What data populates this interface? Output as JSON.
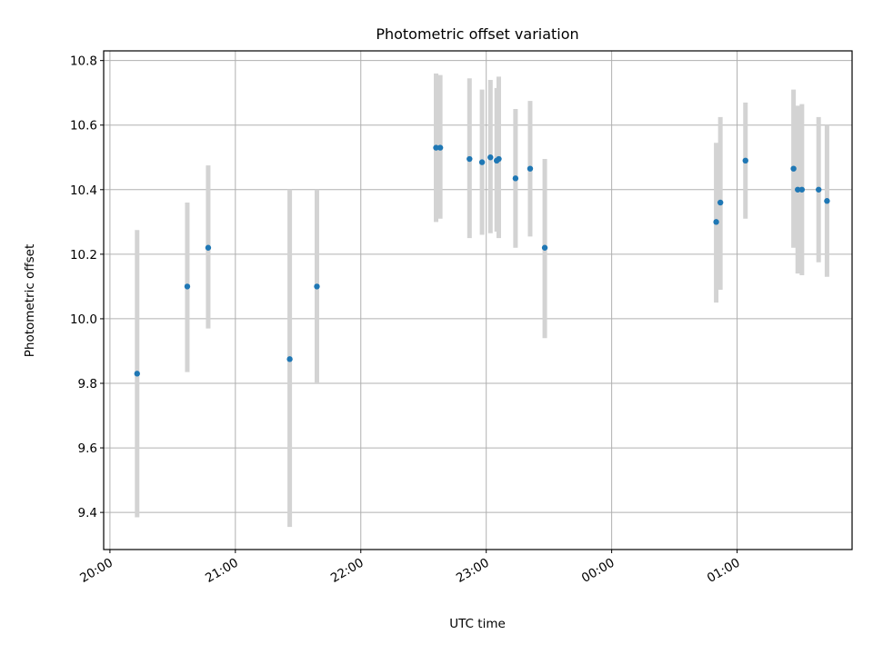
{
  "chart_data": {
    "type": "scatter",
    "title": "Photometric offset variation",
    "xlabel": "UTC time",
    "ylabel": "Photometric offset",
    "x_tick_labels": [
      "20:00",
      "21:00",
      "22:00",
      "23:00",
      "00:00",
      "01:00"
    ],
    "y_tick_labels": [
      "9.4",
      "9.6",
      "9.8",
      "10.0",
      "10.2",
      "10.4",
      "10.6",
      "10.8"
    ],
    "xlim": [
      "19:57",
      "01:55"
    ],
    "ylim": [
      9.285,
      10.83
    ],
    "grid": true,
    "series": [
      {
        "marker_color": "#1f77b4",
        "errorbar_color": "#d3d3d3",
        "points": [
          {
            "x": "20:13",
            "y": 9.83,
            "y_low": 9.385,
            "y_high": 10.275
          },
          {
            "x": "20:37",
            "y": 10.1,
            "y_low": 9.835,
            "y_high": 10.36
          },
          {
            "x": "20:47",
            "y": 10.22,
            "y_low": 9.97,
            "y_high": 10.475
          },
          {
            "x": "21:26",
            "y": 9.875,
            "y_low": 9.355,
            "y_high": 10.4
          },
          {
            "x": "21:39",
            "y": 10.1,
            "y_low": 9.8,
            "y_high": 10.4
          },
          {
            "x": "22:36",
            "y": 10.53,
            "y_low": 10.3,
            "y_high": 10.76
          },
          {
            "x": "22:38",
            "y": 10.53,
            "y_low": 10.31,
            "y_high": 10.755
          },
          {
            "x": "22:52",
            "y": 10.495,
            "y_low": 10.25,
            "y_high": 10.745
          },
          {
            "x": "22:58",
            "y": 10.485,
            "y_low": 10.26,
            "y_high": 10.71
          },
          {
            "x": "23:02",
            "y": 10.5,
            "y_low": 10.265,
            "y_high": 10.74
          },
          {
            "x": "23:05",
            "y": 10.49,
            "y_low": 10.27,
            "y_high": 10.715
          },
          {
            "x": "23:06",
            "y": 10.495,
            "y_low": 10.25,
            "y_high": 10.75
          },
          {
            "x": "23:14",
            "y": 10.435,
            "y_low": 10.22,
            "y_high": 10.65
          },
          {
            "x": "23:21",
            "y": 10.465,
            "y_low": 10.255,
            "y_high": 10.675
          },
          {
            "x": "23:28",
            "y": 10.22,
            "y_low": 9.94,
            "y_high": 10.495
          },
          {
            "x": "00:50",
            "y": 10.3,
            "y_low": 10.05,
            "y_high": 10.545
          },
          {
            "x": "00:52",
            "y": 10.36,
            "y_low": 10.09,
            "y_high": 10.625
          },
          {
            "x": "01:04",
            "y": 10.49,
            "y_low": 10.31,
            "y_high": 10.67
          },
          {
            "x": "01:27",
            "y": 10.465,
            "y_low": 10.22,
            "y_high": 10.71
          },
          {
            "x": "01:29",
            "y": 10.4,
            "y_low": 10.14,
            "y_high": 10.66
          },
          {
            "x": "01:31",
            "y": 10.4,
            "y_low": 10.135,
            "y_high": 10.665
          },
          {
            "x": "01:39",
            "y": 10.4,
            "y_low": 10.175,
            "y_high": 10.625
          },
          {
            "x": "01:43",
            "y": 10.365,
            "y_low": 10.13,
            "y_high": 10.6
          }
        ]
      }
    ]
  }
}
